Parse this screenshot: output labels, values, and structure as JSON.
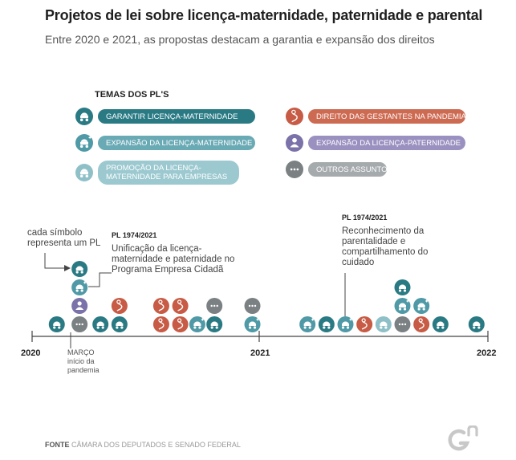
{
  "header": {
    "title": "Projetos de lei sobre licença-maternidade, paternidade e parental",
    "subtitle": "Entre 2020 e 2021, as propostas destacam a garantia e expansão dos direitos"
  },
  "legend": {
    "title": "TEMAS DOS PL'S",
    "items": [
      {
        "key": "garantir",
        "label": "GARANTIR LICENÇA-MATERNIDADE",
        "color": "#2a7a84",
        "pill": "#2a7a84",
        "icon": "stroller-icon"
      },
      {
        "key": "expansao_mat",
        "label": "EXPANSÃO DA LICENÇA-MATERNIDADE",
        "color": "#4f9aa6",
        "pill": "#6aaab5",
        "icon": "stroller-plus-icon"
      },
      {
        "key": "promocao",
        "label": "PROMOÇÃO DA LICENÇA-MATERNIDADE PARA EMPRESAS",
        "color": "#8fc0c8",
        "pill": "#9cc9d0",
        "icon": "stroller-icon"
      },
      {
        "key": "gestantes",
        "label": "DIREITO DAS GESTANTES NA PANDEMIA",
        "color": "#c75b45",
        "pill": "#cd6a52",
        "icon": "pregnant-icon"
      },
      {
        "key": "paternidade",
        "label": "EXPANSÃO DA LICENÇA-PATERNIDADE",
        "color": "#7a72a8",
        "pill": "#9b91c0",
        "icon": "father-icon"
      },
      {
        "key": "outros",
        "label": "OUTROS ASSUNTOS",
        "color": "#7b8083",
        "pill": "#a5aaad",
        "icon": "dots-icon"
      }
    ]
  },
  "annotations": {
    "symbol_note": "cada símbolo representa um PL",
    "pl1_title": "PL 1974/2021",
    "pl1_text": "Unificação da licença-maternidade e paternidade no Programa Empresa Cidadã",
    "pl2_title": "PL 1974/2021",
    "pl2_text": "Reconhecimento da parentalidade e compartilhamento do cuidado",
    "march": "MARÇO",
    "march_sub": "início da pandemia"
  },
  "axis": {
    "labels": [
      "2020",
      "2021",
      "2022"
    ]
  },
  "source": {
    "label": "FONTE",
    "text": "CÂMARA DOS DEPUTADOS E SENADO FEDERAL"
  },
  "chart_data": {
    "type": "scatter",
    "title": "Projetos de lei sobre licença-maternidade, paternidade e parental",
    "x_unit": "months since Jan 2020",
    "xlim": [
      0,
      24
    ],
    "x_ticks": [
      "2020",
      "2021",
      "2022"
    ],
    "note": "each symbol is one bill (PL); symbols stacked vertically by month",
    "stacks": [
      {
        "month": 1.3,
        "symbols": [
          "garantir"
        ]
      },
      {
        "month": 2.5,
        "symbols": [
          "outros",
          "paternidade",
          "expansao_mat",
          "garantir"
        ]
      },
      {
        "month": 3.6,
        "symbols": [
          "garantir"
        ]
      },
      {
        "month": 4.6,
        "symbols": [
          "garantir",
          "gestantes"
        ]
      },
      {
        "month": 6.8,
        "symbols": [
          "gestantes",
          "gestantes"
        ]
      },
      {
        "month": 7.8,
        "symbols": [
          "gestantes",
          "gestantes"
        ]
      },
      {
        "month": 8.7,
        "symbols": [
          "expansao_mat"
        ]
      },
      {
        "month": 9.6,
        "symbols": [
          "garantir",
          "outros"
        ]
      },
      {
        "month": 11.6,
        "symbols": [
          "expansao_mat",
          "outros"
        ]
      },
      {
        "month": 14.5,
        "symbols": [
          "expansao_mat"
        ]
      },
      {
        "month": 15.5,
        "symbols": [
          "garantir"
        ]
      },
      {
        "month": 16.5,
        "symbols": [
          "expansao_mat"
        ]
      },
      {
        "month": 17.5,
        "symbols": [
          "gestantes"
        ]
      },
      {
        "month": 18.5,
        "symbols": [
          "promocao"
        ]
      },
      {
        "month": 19.5,
        "symbols": [
          "outros",
          "expansao_mat",
          "garantir"
        ]
      },
      {
        "month": 20.5,
        "symbols": [
          "gestantes",
          "expansao_mat"
        ]
      },
      {
        "month": 21.5,
        "symbols": [
          "garantir"
        ]
      },
      {
        "month": 23.4,
        "symbols": [
          "garantir"
        ]
      }
    ]
  }
}
